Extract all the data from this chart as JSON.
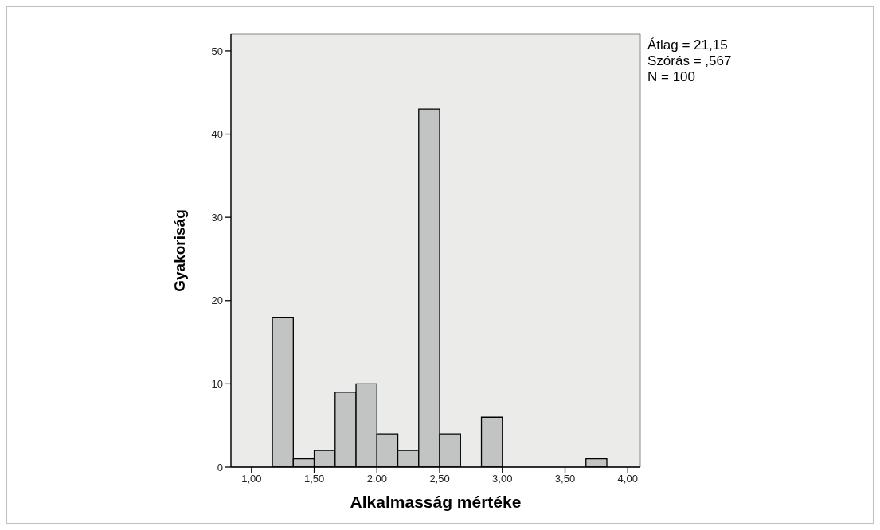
{
  "chart_data": {
    "type": "histogram",
    "xlabel": "Alkalmasság mértéke",
    "ylabel": "Gyakoriság",
    "bins": [
      1.1667,
      1.3333,
      1.5,
      1.6667,
      1.8333,
      2.0,
      2.1667,
      2.3333,
      2.5,
      2.6667,
      2.8333,
      3.0,
      3.1667,
      3.3333,
      3.5,
      3.6667,
      3.8333
    ],
    "values": [
      18,
      1,
      2,
      9,
      10,
      4,
      2,
      43,
      4,
      0,
      6,
      0,
      0,
      0,
      0,
      1
    ],
    "color": "#c2c4c3",
    "xlim": [
      0.836,
      4.1
    ],
    "xticks": [
      {
        "value": 1,
        "label": "1,00"
      },
      {
        "value": 1.5,
        "label": "1,50"
      },
      {
        "value": 2,
        "label": "2,00"
      },
      {
        "value": 2.5,
        "label": "2,50"
      },
      {
        "value": 3,
        "label": "3,00"
      },
      {
        "value": 3.5,
        "label": "3,50"
      },
      {
        "value": 4,
        "label": "4,00"
      }
    ],
    "ylim": [
      0,
      52
    ],
    "yticks": [
      0,
      10,
      20,
      30,
      40,
      50
    ],
    "annotations": [
      "Átlag = 21,15",
      "Szórás = ,567",
      "N = 100"
    ]
  }
}
